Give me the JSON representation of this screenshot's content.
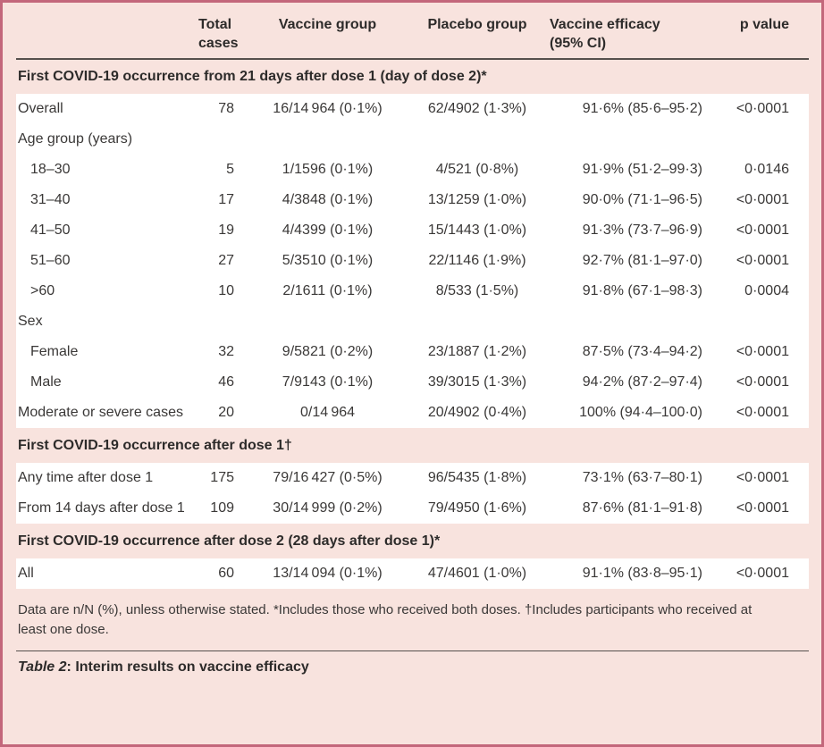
{
  "colors": {
    "card_background": "#f8e3de",
    "card_border": "#c3677b",
    "row_background": "#ffffff",
    "rule": "#56504d",
    "text": "#3a3837"
  },
  "header": {
    "col_total": "Total\ncases",
    "col_vaccine": "Vaccine group",
    "col_placebo": "Placebo group",
    "col_efficacy": "Vaccine efficacy\n(95% CI)",
    "col_p": "p value"
  },
  "sections": [
    {
      "title": "First COVID-19 occurrence from 21 days after dose 1 (day of dose 2)*",
      "rows": [
        {
          "label": "Overall",
          "total": "78",
          "vaccine": "16/14 964 (0·1%)",
          "placebo": "62/4902 (1·3%)",
          "efficacy": "91·6% (85·6–95·2)",
          "p": "<0·0001"
        },
        {
          "label": "Age group (years)",
          "total": "",
          "vaccine": "",
          "placebo": "",
          "efficacy": "",
          "p": ""
        },
        {
          "label": "18–30",
          "total": "5",
          "vaccine": "1/1596 (0·1%)",
          "placebo": "4/521 (0·8%)",
          "efficacy": "91·9% (51·2–99·3)",
          "p": "0·0146"
        },
        {
          "label": "31–40",
          "total": "17",
          "vaccine": "4/3848 (0·1%)",
          "placebo": "13/1259 (1·0%)",
          "efficacy": "90·0% (71·1–96·5)",
          "p": "<0·0001"
        },
        {
          "label": "41–50",
          "total": "19",
          "vaccine": "4/4399 (0·1%)",
          "placebo": "15/1443 (1·0%)",
          "efficacy": "91·3% (73·7–96·9)",
          "p": "<0·0001"
        },
        {
          "label": "51–60",
          "total": "27",
          "vaccine": "5/3510 (0·1%)",
          "placebo": "22/1146 (1·9%)",
          "efficacy": "92·7% (81·1–97·0)",
          "p": "<0·0001"
        },
        {
          "label": ">60",
          "total": "10",
          "vaccine": "2/1611 (0·1%)",
          "placebo": "8/533 (1·5%)",
          "efficacy": "91·8% (67·1–98·3)",
          "p": "0·0004"
        },
        {
          "label": "Sex",
          "total": "",
          "vaccine": "",
          "placebo": "",
          "efficacy": "",
          "p": ""
        },
        {
          "label": "Female",
          "total": "32",
          "vaccine": "9/5821 (0·2%)",
          "placebo": "23/1887 (1·2%)",
          "efficacy": "87·5% (73·4–94·2)",
          "p": "<0·0001"
        },
        {
          "label": "Male",
          "total": "46",
          "vaccine": "7/9143 (0·1%)",
          "placebo": "39/3015 (1·3%)",
          "efficacy": "94·2% (87·2–97·4)",
          "p": "<0·0001"
        },
        {
          "label": "Moderate or severe cases",
          "total": "20",
          "vaccine": "0/14 964",
          "placebo": "20/4902 (0·4%)",
          "efficacy": "100% (94·4–100·0)",
          "p": "<0·0001"
        }
      ]
    },
    {
      "title": "First COVID-19 occurrence after dose 1†",
      "rows": [
        {
          "label": "Any time after dose 1",
          "total": "175",
          "vaccine": "79/16 427 (0·5%)",
          "placebo": "96/5435 (1·8%)",
          "efficacy": "73·1% (63·7–80·1)",
          "p": "<0·0001"
        },
        {
          "label": "From 14 days after dose 1",
          "total": "109",
          "vaccine": "30/14 999 (0·2%)",
          "placebo": "79/4950 (1·6%)",
          "efficacy": "87·6% (81·1–91·8)",
          "p": "<0·0001"
        }
      ]
    },
    {
      "title": "First COVID-19 occurrence after dose 2 (28 days after dose 1)*",
      "rows": [
        {
          "label": "All",
          "total": "60",
          "vaccine": "13/14 094 (0·1%)",
          "placebo": "47/4601 (1·0%)",
          "efficacy": "91·1% (83·8–95·1)",
          "p": "<0·0001"
        }
      ]
    }
  ],
  "footnote": "Data are n/N (%), unless otherwise stated. *Includes those who received both doses. †Includes participants who received at least one dose.",
  "caption": {
    "prefix": "Table 2",
    "rest": ": Interim results on vaccine efficacy"
  }
}
